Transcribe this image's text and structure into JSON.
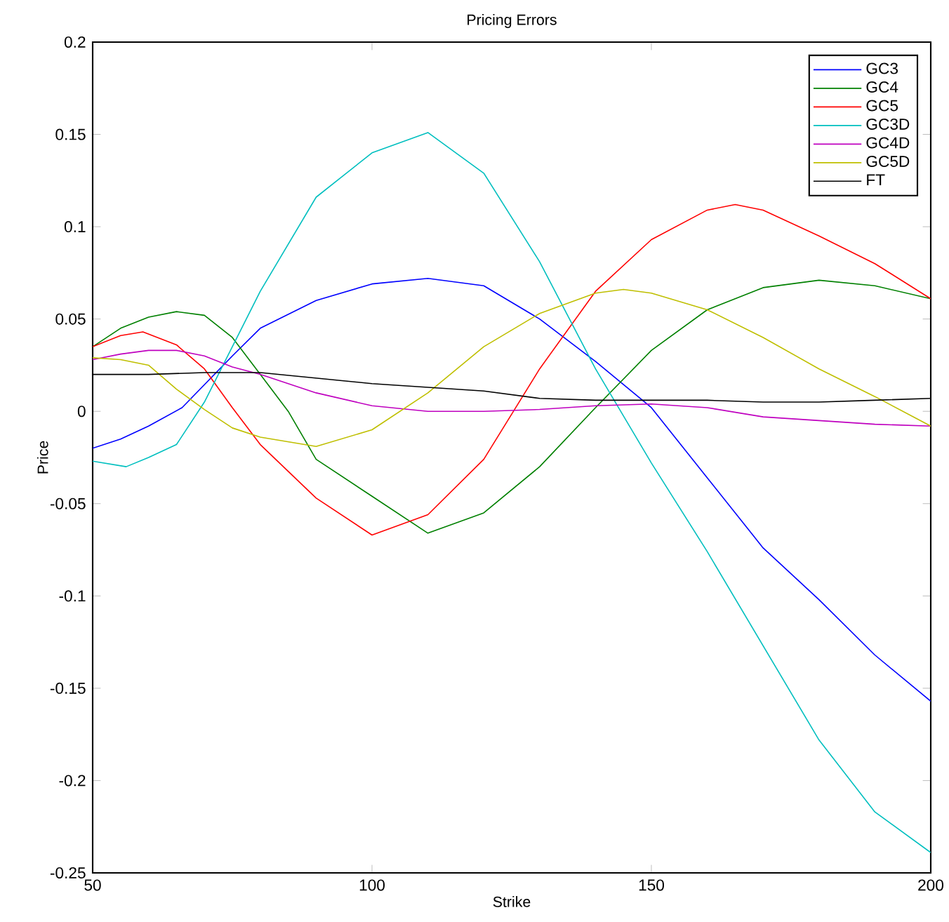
{
  "chart_data": {
    "type": "line",
    "title": "Pricing Errors",
    "xlabel": "Strike",
    "ylabel": "Price",
    "xlim": [
      50,
      200
    ],
    "ylim": [
      -0.25,
      0.2
    ],
    "xticks": [
      50,
      100,
      150,
      200
    ],
    "yticks": [
      -0.25,
      -0.2,
      -0.15,
      -0.1,
      -0.05,
      0,
      0.05,
      0.1,
      0.15,
      0.2
    ],
    "grid": false,
    "legend": "top right",
    "marker": "none",
    "line_style": "solid",
    "series": [
      {
        "name": "GC3",
        "color": "#0000ff",
        "x": [
          50,
          55,
          60,
          66,
          75,
          80,
          90,
          100,
          110,
          120,
          130,
          140,
          150,
          160,
          170,
          180,
          190,
          200
        ],
        "values": [
          -0.02,
          -0.015,
          -0.008,
          0.002,
          0.03,
          0.045,
          0.06,
          0.069,
          0.072,
          0.068,
          0.05,
          0.027,
          0.002,
          -0.036,
          -0.074,
          -0.102,
          -0.132,
          -0.157
        ]
      },
      {
        "name": "GC4",
        "color": "#008000",
        "x": [
          50,
          55,
          60,
          65,
          70,
          75,
          80,
          85,
          90,
          100,
          110,
          120,
          130,
          140,
          150,
          160,
          170,
          180,
          190,
          200
        ],
        "values": [
          0.035,
          0.045,
          0.051,
          0.054,
          0.052,
          0.04,
          0.02,
          0.0,
          -0.026,
          -0.046,
          -0.066,
          -0.055,
          -0.03,
          0.002,
          0.033,
          0.055,
          0.067,
          0.071,
          0.068,
          0.061
        ]
      },
      {
        "name": "GC5",
        "color": "#ff0000",
        "x": [
          50,
          55,
          59,
          65,
          70,
          75,
          80,
          90,
          100,
          110,
          120,
          130,
          140,
          150,
          160,
          165,
          170,
          180,
          190,
          200
        ],
        "values": [
          0.035,
          0.041,
          0.043,
          0.036,
          0.023,
          0.002,
          -0.018,
          -0.047,
          -0.067,
          -0.056,
          -0.026,
          0.023,
          0.065,
          0.093,
          0.109,
          0.112,
          0.109,
          0.095,
          0.08,
          0.061
        ]
      },
      {
        "name": "GC3D",
        "color": "#00bfbf",
        "x": [
          50,
          56,
          60,
          65,
          70,
          75,
          80,
          90,
          100,
          110,
          120,
          130,
          140,
          150,
          160,
          170,
          180,
          190,
          200
        ],
        "values": [
          -0.027,
          -0.03,
          -0.025,
          -0.018,
          0.005,
          0.035,
          0.065,
          0.116,
          0.14,
          0.151,
          0.129,
          0.081,
          0.023,
          -0.028,
          -0.076,
          -0.127,
          -0.178,
          -0.217,
          -0.239
        ]
      },
      {
        "name": "GC4D",
        "color": "#bf00bf",
        "x": [
          50,
          55,
          60,
          65,
          70,
          75,
          80,
          90,
          100,
          110,
          120,
          130,
          140,
          150,
          160,
          170,
          180,
          190,
          200
        ],
        "values": [
          0.028,
          0.031,
          0.033,
          0.033,
          0.03,
          0.024,
          0.02,
          0.01,
          0.003,
          0.0,
          0.0,
          0.001,
          0.003,
          0.004,
          0.002,
          -0.003,
          -0.005,
          -0.007,
          -0.008
        ]
      },
      {
        "name": "GC5D",
        "color": "#bfbf00",
        "x": [
          50,
          55,
          60,
          65,
          70,
          75,
          80,
          90,
          100,
          110,
          120,
          130,
          140,
          145,
          150,
          160,
          170,
          180,
          190,
          200
        ],
        "values": [
          0.029,
          0.028,
          0.025,
          0.012,
          0.001,
          -0.009,
          -0.014,
          -0.019,
          -0.01,
          0.01,
          0.035,
          0.053,
          0.064,
          0.066,
          0.064,
          0.055,
          0.04,
          0.023,
          0.008,
          -0.008
        ]
      },
      {
        "name": "FT",
        "color": "#000000",
        "x": [
          50,
          60,
          70,
          80,
          90,
          100,
          110,
          120,
          130,
          140,
          150,
          160,
          170,
          180,
          190,
          200
        ],
        "values": [
          0.02,
          0.02,
          0.021,
          0.021,
          0.018,
          0.015,
          0.013,
          0.011,
          0.007,
          0.006,
          0.006,
          0.006,
          0.005,
          0.005,
          0.006,
          0.007
        ]
      }
    ]
  }
}
